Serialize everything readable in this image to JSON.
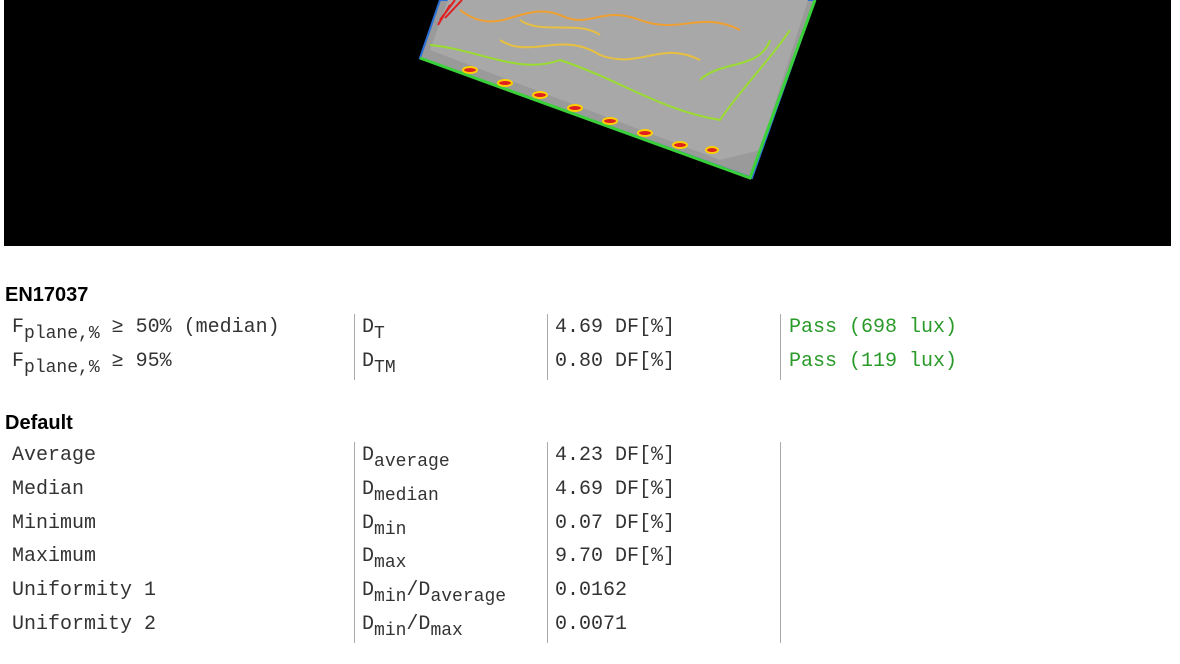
{
  "sections": [
    {
      "title": "EN17037",
      "rows": [
        {
          "label": [
            "F",
            "plane,%",
            " ≥ 50% (median)"
          ],
          "symbol": [
            "D",
            "T"
          ],
          "value": "4.69 DF[%]",
          "result": "Pass (698 lux)"
        },
        {
          "label": [
            "F",
            "plane,%",
            " ≥ 95%"
          ],
          "symbol": [
            "D",
            "TM"
          ],
          "value": "0.80 DF[%]",
          "result": "Pass (119 lux)"
        }
      ]
    },
    {
      "title": "Default",
      "rows": [
        {
          "label": [
            "Average"
          ],
          "symbol": [
            "D",
            "average"
          ],
          "value": "4.23 DF[%]"
        },
        {
          "label": [
            "Median"
          ],
          "symbol": [
            "D",
            "median"
          ],
          "value": "4.69 DF[%]"
        },
        {
          "label": [
            "Minimum"
          ],
          "symbol": [
            "D",
            "min"
          ],
          "value": "0.07 DF[%]"
        },
        {
          "label": [
            "Maximum"
          ],
          "symbol": [
            "D",
            "max"
          ],
          "value": "9.70 DF[%]"
        },
        {
          "label": [
            "Uniformity 1"
          ],
          "symbol": [
            "D",
            "min",
            "/D",
            "average"
          ],
          "value": "0.0162"
        },
        {
          "label": [
            "Uniformity 2"
          ],
          "symbol": [
            "D",
            "min",
            "/D",
            "max"
          ],
          "value": "0.0071"
        }
      ]
    }
  ]
}
